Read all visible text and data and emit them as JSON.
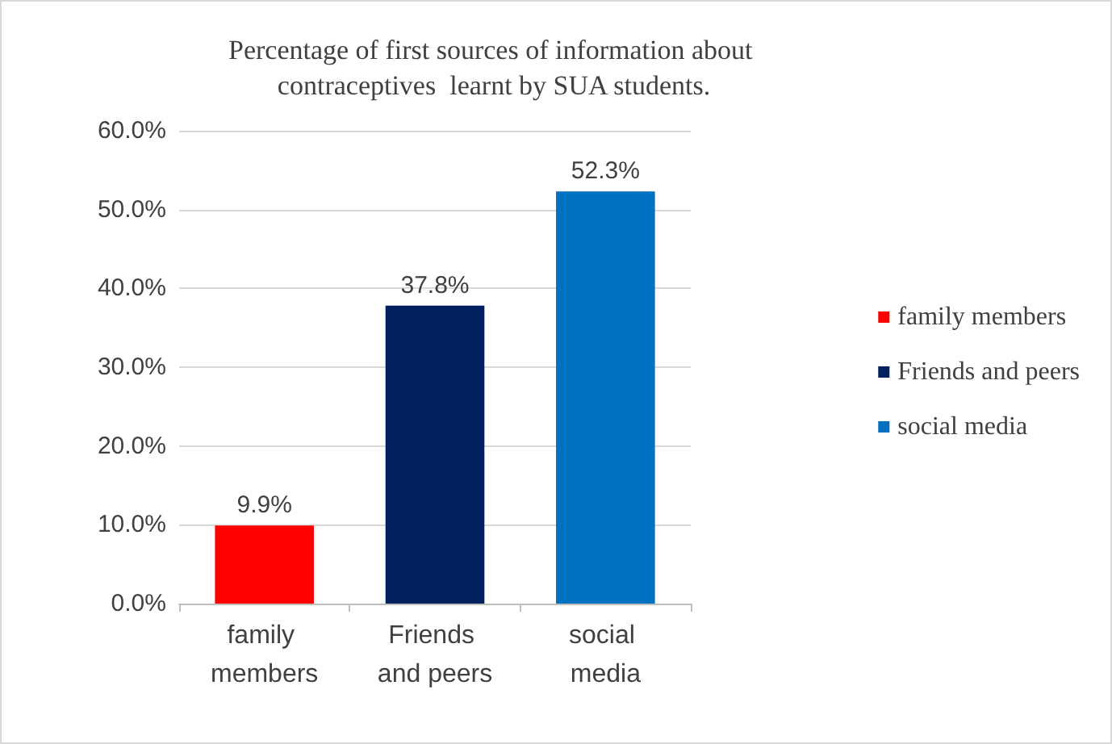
{
  "chart_data": {
    "type": "bar",
    "title": "Percentage of first sources of information about contraceptives  learnt by SUA students.",
    "categories": [
      "family members",
      "Friends and peers",
      "social media"
    ],
    "series": [
      {
        "name": "family members",
        "color": "#ff0000",
        "values": [
          9.9,
          null,
          null
        ],
        "value_labels": [
          "9.9%",
          null,
          null
        ]
      },
      {
        "name": "Friends and peers",
        "color": "#002060",
        "values": [
          null,
          37.8,
          null
        ],
        "value_labels": [
          null,
          "37.8%",
          null
        ]
      },
      {
        "name": "social media",
        "color": "#0070c0",
        "values": [
          null,
          null,
          52.3
        ],
        "value_labels": [
          null,
          null,
          "52.3%"
        ]
      }
    ],
    "ylim": [
      0,
      60
    ],
    "yticks": [
      {
        "value": 0,
        "label": "0.0%"
      },
      {
        "value": 10,
        "label": "10.0%"
      },
      {
        "value": 20,
        "label": "20.0%"
      },
      {
        "value": 30,
        "label": "30.0%"
      },
      {
        "value": 40,
        "label": "40.0%"
      },
      {
        "value": 50,
        "label": "50.0%"
      },
      {
        "value": 60,
        "label": "60.0%"
      }
    ],
    "grid": "y",
    "legend": "right"
  }
}
